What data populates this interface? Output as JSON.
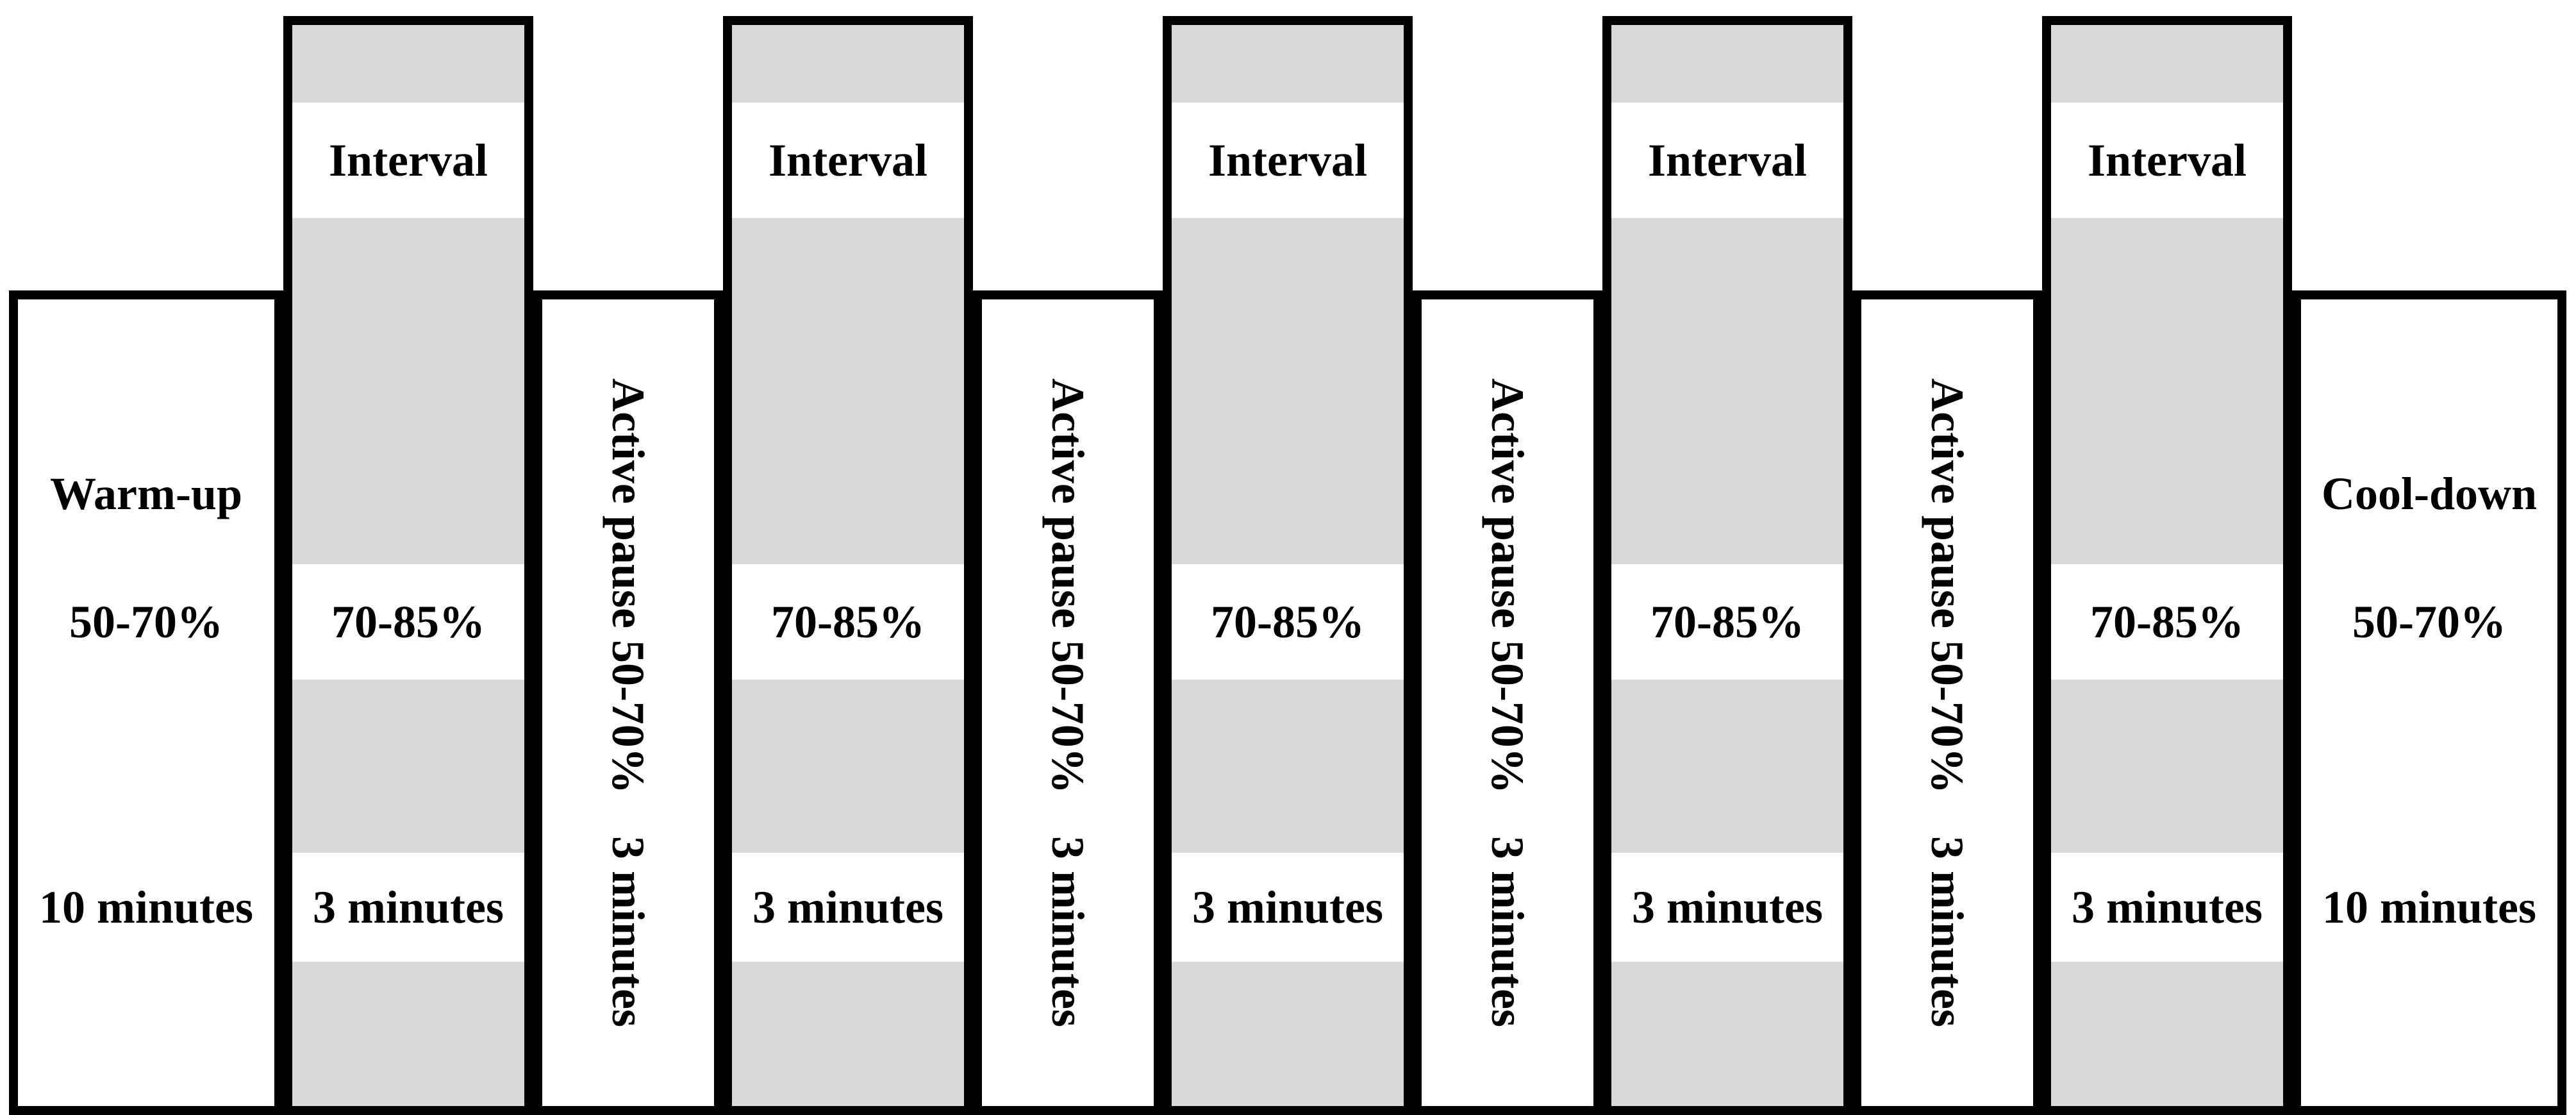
{
  "blocks": {
    "warm_up": {
      "name": "Warm-up",
      "intensity": "50-70%",
      "duration": "10 minutes"
    },
    "interval": {
      "name": "Interval",
      "intensity": "70-85%",
      "duration": "3 minutes"
    },
    "active_pause": {
      "label": "Active pause 50-70%",
      "duration": "3 minutes"
    },
    "cool_down": {
      "name": "Cool-down",
      "intensity": "50-70%",
      "duration": "10 minutes"
    }
  },
  "sequence": [
    "warm_up",
    "interval",
    "active_pause",
    "interval",
    "active_pause",
    "interval",
    "active_pause",
    "interval",
    "active_pause",
    "interval",
    "cool_down"
  ],
  "colors": {
    "stripe_gray": "#d9d9d9",
    "outline": "#000000",
    "background": "#ffffff"
  }
}
